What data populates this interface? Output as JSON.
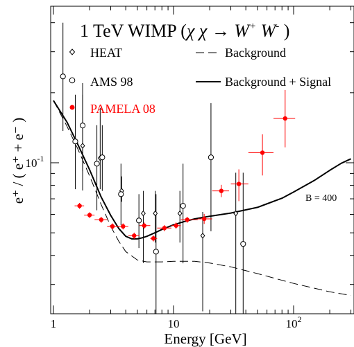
{
  "chart_data": {
    "type": "scatter",
    "title": "",
    "xlabel": "Energy [GeV]",
    "ylabel": "e⁺ / ( e⁺ + e⁻ )",
    "xscale": "log",
    "yscale": "log",
    "xlim": [
      1,
      300
    ],
    "ylim": [
      0.015,
      0.5
    ],
    "x_ticks": [
      {
        "value": 1,
        "label": "1"
      },
      {
        "value": 10,
        "label": "10"
      },
      {
        "value": 100,
        "label": "10",
        "sup": "2"
      }
    ],
    "y_ticks": [
      {
        "value": 0.1,
        "label": "10",
        "sup": "-1"
      }
    ],
    "annotation": {
      "title_main": "1 TeV WIMP (",
      "title_chi": "χ χ → W",
      "title_plus": "+",
      "title_w2": " W",
      "title_minus": "-",
      "title_close": " )",
      "b_label": "B = 400"
    },
    "legend_placement": "top",
    "legend": [
      {
        "key": "heat",
        "label": "HEAT",
        "marker": "diamond",
        "color": "#000000"
      },
      {
        "key": "ams",
        "label": "AMS 98",
        "marker": "open-circle",
        "color": "#000000"
      },
      {
        "key": "pamela",
        "label": "PAMELA 08",
        "marker": "filled-circle",
        "color": "#ff0000"
      },
      {
        "key": "background",
        "label": "Background",
        "line": "dashed",
        "color": "#000000"
      },
      {
        "key": "signal",
        "label": "Background + Signal",
        "line": "solid",
        "color": "#000000"
      }
    ],
    "series": [
      {
        "name": "HEAT",
        "marker": "diamond",
        "color": "#000000",
        "points": [
          {
            "x": 1.75,
            "y": 0.1183,
            "ylo": 0.076,
            "yhi": 0.196
          },
          {
            "x": 2.45,
            "y": 0.1047,
            "ylo": 0.077,
            "yhi": 0.172
          },
          {
            "x": 3.7,
            "y": 0.0757,
            "ylo": 0.068,
            "yhi": 0.0874
          },
          {
            "x": 5.6,
            "y": 0.0606,
            "ylo": 0.0371,
            "yhi": 0.0757
          },
          {
            "x": 7.05,
            "y": 0.0606,
            "ylo": 0.0454,
            "yhi": 0.0757
          },
          {
            "x": 11.3,
            "y": 0.0606,
            "ylo": 0.0454,
            "yhi": 0.0757
          },
          {
            "x": 17.5,
            "y": 0.0486,
            "ylo": 0.023,
            "yhi": 0.0615
          },
          {
            "x": 33.0,
            "y": 0.0606,
            "ylo": 0.0133,
            "yhi": 0.0906
          }
        ]
      },
      {
        "name": "AMS 98",
        "marker": "open-circle",
        "color": "#000000",
        "points": [
          {
            "x": 1.2,
            "y": 0.235,
            "ylo": 0.137,
            "yhi": 0.4
          },
          {
            "x": 1.52,
            "y": 0.1235,
            "ylo": 0.077,
            "yhi": 0.196
          },
          {
            "x": 1.75,
            "y": 0.1445,
            "ylo": 0.092,
            "yhi": 0.22
          },
          {
            "x": 2.3,
            "y": 0.0991,
            "ylo": 0.0625,
            "yhi": 0.145
          },
          {
            "x": 2.55,
            "y": 0.1055,
            "ylo": 0.0757,
            "yhi": 0.145
          },
          {
            "x": 3.65,
            "y": 0.0733,
            "ylo": 0.054,
            "yhi": 0.0991
          },
          {
            "x": 5.15,
            "y": 0.0565,
            "ylo": 0.043,
            "yhi": 0.0733
          },
          {
            "x": 7.15,
            "y": 0.0415,
            "ylo": 0.0208,
            "yhi": 0.0733
          },
          {
            "x": 12.0,
            "y": 0.0653,
            "ylo": 0.037,
            "yhi": 0.0991
          },
          {
            "x": 20.5,
            "y": 0.1055,
            "ylo": 0.0508,
            "yhi": 0.1805
          },
          {
            "x": 38.0,
            "y": 0.0448,
            "ylo": 0.0133,
            "yhi": 0.0906
          }
        ]
      },
      {
        "name": "PAMELA 08",
        "marker": "filled-circle",
        "color": "#ff0000",
        "points": [
          {
            "x": 1.65,
            "y": 0.0653,
            "xlo": 1.5,
            "xhi": 1.8,
            "ylo": 0.0634,
            "yhi": 0.0672
          },
          {
            "x": 2.0,
            "y": 0.0596,
            "xlo": 1.8,
            "xhi": 2.2,
            "ylo": 0.0579,
            "yhi": 0.0613
          },
          {
            "x": 2.5,
            "y": 0.0569,
            "xlo": 2.2,
            "xhi": 2.8,
            "ylo": 0.0552,
            "yhi": 0.0586
          },
          {
            "x": 3.1,
            "y": 0.0533,
            "xlo": 2.8,
            "xhi": 3.5,
            "ylo": 0.0517,
            "yhi": 0.0549
          },
          {
            "x": 3.8,
            "y": 0.0533,
            "xlo": 3.5,
            "xhi": 4.2,
            "ylo": 0.0517,
            "yhi": 0.0549
          },
          {
            "x": 4.7,
            "y": 0.0486,
            "xlo": 4.2,
            "xhi": 5.2,
            "ylo": 0.0471,
            "yhi": 0.0501
          },
          {
            "x": 5.7,
            "y": 0.0537,
            "xlo": 5.2,
            "xhi": 6.4,
            "ylo": 0.052,
            "yhi": 0.0554
          },
          {
            "x": 6.8,
            "y": 0.0473,
            "xlo": 6.4,
            "xhi": 7.3,
            "ylo": 0.0459,
            "yhi": 0.0487
          },
          {
            "x": 8.4,
            "y": 0.0524,
            "xlo": 7.3,
            "xhi": 9.6,
            "ylo": 0.0508,
            "yhi": 0.054
          },
          {
            "x": 10.5,
            "y": 0.0537,
            "xlo": 9.6,
            "xhi": 11.5,
            "ylo": 0.052,
            "yhi": 0.0554
          },
          {
            "x": 13.0,
            "y": 0.0569,
            "xlo": 11.5,
            "xhi": 16.0,
            "ylo": 0.0552,
            "yhi": 0.0586
          },
          {
            "x": 18.0,
            "y": 0.0574,
            "xlo": 16.0,
            "xhi": 21.0,
            "ylo": 0.0546,
            "yhi": 0.0603
          },
          {
            "x": 25.0,
            "y": 0.0757,
            "xlo": 21.0,
            "xhi": 29.0,
            "ylo": 0.0712,
            "yhi": 0.0804
          },
          {
            "x": 35.0,
            "y": 0.0811,
            "xlo": 30.0,
            "xhi": 42.0,
            "ylo": 0.0684,
            "yhi": 0.0937
          },
          {
            "x": 55.0,
            "y": 0.1105,
            "xlo": 42.0,
            "xhi": 68.0,
            "ylo": 0.0882,
            "yhi": 0.1325
          },
          {
            "x": 85.0,
            "y": 0.155,
            "xlo": 68.0,
            "xhi": 103.0,
            "ylo": 0.1165,
            "yhi": 0.2055
          }
        ]
      }
    ],
    "curves": [
      {
        "name": "Background",
        "style": "dashed",
        "color": "#000000",
        "x": [
          1.0,
          1.3,
          1.6,
          2.0,
          2.5,
          3.0,
          3.5,
          4.0,
          5.0,
          6.0,
          8.0,
          10.0,
          15.0,
          20.0,
          30.0,
          50.0,
          100.0,
          200.0,
          300.0
        ],
        "y": [
          0.185,
          0.1431,
          0.1143,
          0.0878,
          0.0661,
          0.0533,
          0.046,
          0.0415,
          0.0382,
          0.0375,
          0.0375,
          0.0377,
          0.0377,
          0.0371,
          0.0357,
          0.0334,
          0.0303,
          0.0279,
          0.0269
        ]
      },
      {
        "name": "Background + Signal",
        "style": "solid",
        "color": "#000000",
        "x": [
          1.0,
          1.3,
          1.6,
          2.0,
          2.5,
          3.0,
          3.5,
          4.0,
          4.5,
          5.0,
          5.5,
          6.0,
          7.0,
          8.0,
          10.0,
          12.0,
          15.0,
          20.0,
          30.0,
          50.0,
          80.0,
          100.0,
          150.0,
          200.0,
          250.0,
          300.0
        ],
        "y": [
          0.185,
          0.1491,
          0.1196,
          0.0933,
          0.0712,
          0.0594,
          0.0522,
          0.0483,
          0.0471,
          0.0471,
          0.0476,
          0.0483,
          0.05,
          0.0517,
          0.0541,
          0.0557,
          0.0574,
          0.0589,
          0.0608,
          0.0643,
          0.0704,
          0.0749,
          0.0842,
          0.0928,
          0.0995,
          0.104
        ]
      }
    ]
  }
}
